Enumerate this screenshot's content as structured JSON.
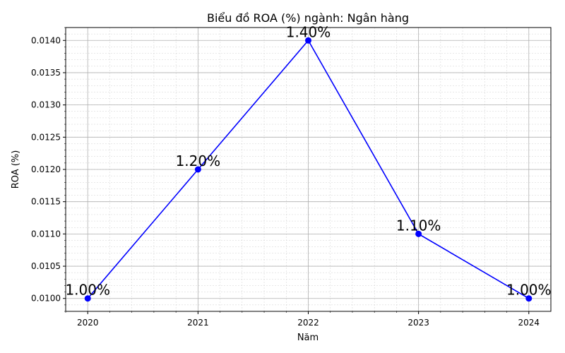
{
  "chart_data": {
    "type": "line",
    "title": "Biểu đồ ROA (%) ngành: Ngân hàng",
    "xlabel": "Năm",
    "ylabel": "ROA (%)",
    "categories": [
      "2020",
      "2021",
      "2022",
      "2023",
      "2024"
    ],
    "series": [
      {
        "values": [
          0.01,
          0.012,
          0.014,
          0.011,
          0.01
        ],
        "labels": [
          "1.00%",
          "1.20%",
          "1.40%",
          "1.10%",
          "1.00%"
        ],
        "color": "#0000ff"
      }
    ],
    "xlim": [
      2019.8,
      2024.2
    ],
    "ylim": [
      0.0098,
      0.0142
    ],
    "yticks": [
      "0.0100",
      "0.0105",
      "0.0110",
      "0.0115",
      "0.0120",
      "0.0125",
      "0.0130",
      "0.0135",
      "0.0140"
    ],
    "grid": true,
    "minor_grid": true
  }
}
